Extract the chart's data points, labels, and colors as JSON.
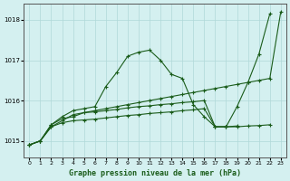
{
  "title": "Graphe pression niveau de la mer (hPa)",
  "bg_color": "#d4f0f0",
  "grid_color": "#b0d8d8",
  "line_color": "#1a5c1a",
  "x_values": [
    0,
    1,
    2,
    3,
    4,
    5,
    6,
    7,
    8,
    9,
    10,
    11,
    12,
    13,
    14,
    15,
    16,
    17,
    18,
    19,
    20,
    21,
    22,
    23
  ],
  "line1": [
    1014.9,
    1015.0,
    1015.4,
    1015.6,
    1015.75,
    1015.8,
    1015.85,
    1016.35,
    1016.7,
    1017.1,
    1017.2,
    1017.25,
    1017.0,
    1016.65,
    1016.55,
    1015.9,
    1015.6,
    1015.35,
    1015.35,
    1015.85,
    1016.45,
    1017.15,
    1018.15,
    null
  ],
  "line2": [
    1014.9,
    1015.0,
    1015.35,
    1015.5,
    1015.65,
    1015.7,
    1015.75,
    1015.8,
    1015.85,
    1015.9,
    1015.95,
    1016.0,
    1016.05,
    1016.1,
    1016.15,
    1016.2,
    1016.25,
    1016.3,
    1016.35,
    1016.4,
    1016.45,
    1016.5,
    1016.55,
    1018.2
  ],
  "line3": [
    1014.9,
    1015.0,
    1015.4,
    1015.55,
    1015.6,
    1015.7,
    1015.72,
    1015.75,
    1015.78,
    1015.82,
    1015.85,
    1015.87,
    1015.9,
    1015.92,
    1015.95,
    1015.97,
    1016.0,
    1015.35,
    1015.35,
    1015.35,
    1015.37,
    1015.38,
    1015.4,
    null
  ],
  "line4": [
    1014.9,
    1015.0,
    1015.35,
    1015.45,
    1015.5,
    1015.52,
    1015.54,
    1015.57,
    1015.6,
    1015.63,
    1015.65,
    1015.68,
    1015.7,
    1015.72,
    1015.75,
    1015.77,
    1015.8,
    1015.35,
    1015.35,
    1015.37,
    null,
    null,
    null,
    null
  ],
  "ylim": [
    1014.6,
    1018.4
  ],
  "yticks": [
    1015,
    1016,
    1017,
    1018
  ],
  "xlim": [
    -0.5,
    23.5
  ],
  "title_fontsize": 8,
  "marker": "+"
}
